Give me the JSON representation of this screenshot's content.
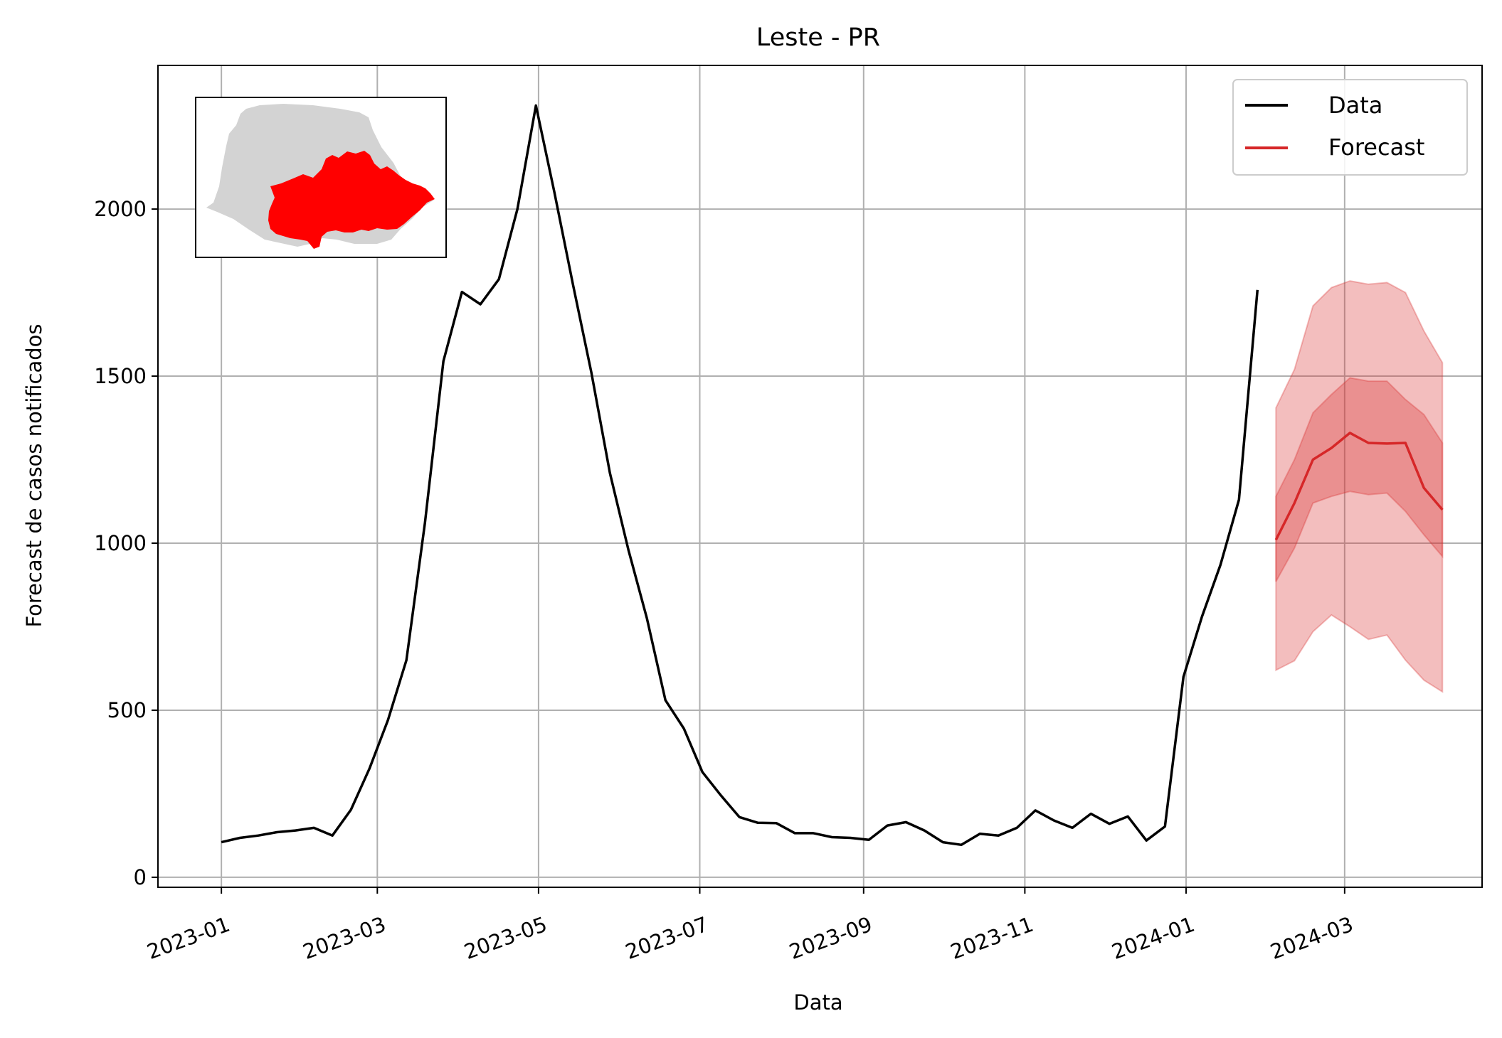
{
  "chart_data": {
    "type": "line",
    "title": "Leste - PR",
    "xlabel": "Data",
    "ylabel": "Forecast de casos notificados",
    "x_tick_labels": [
      "2023-01",
      "2023-03",
      "2023-05",
      "2023-07",
      "2023-09",
      "2023-11",
      "2024-01",
      "2024-03"
    ],
    "y_tick_labels": [
      "0",
      "500",
      "1000",
      "1500",
      "2000"
    ],
    "y_ticks": [
      0,
      500,
      1000,
      1500,
      2000
    ],
    "xlim": [
      "2022-12-08",
      "2024-04-22"
    ],
    "ylim": [
      -30,
      2430
    ],
    "grid": true,
    "legend": {
      "position": "top-right",
      "entries": [
        {
          "label": "Data",
          "color": "#000000"
        },
        {
          "label": "Forecast",
          "color": "#d62728"
        }
      ]
    },
    "series": [
      {
        "name": "Data",
        "color": "#000000",
        "x": [
          "2023-01-01",
          "2023-01-08",
          "2023-01-15",
          "2023-01-22",
          "2023-01-29",
          "2023-02-05",
          "2023-02-12",
          "2023-02-19",
          "2023-02-26",
          "2023-03-05",
          "2023-03-12",
          "2023-03-19",
          "2023-03-26",
          "2023-04-02",
          "2023-04-09",
          "2023-04-16",
          "2023-04-23",
          "2023-04-30",
          "2023-05-07",
          "2023-05-14",
          "2023-05-21",
          "2023-05-28",
          "2023-06-04",
          "2023-06-11",
          "2023-06-18",
          "2023-06-25",
          "2023-07-02",
          "2023-07-09",
          "2023-07-16",
          "2023-07-23",
          "2023-07-30",
          "2023-08-06",
          "2023-08-13",
          "2023-08-20",
          "2023-08-27",
          "2023-09-03",
          "2023-09-10",
          "2023-09-17",
          "2023-09-24",
          "2023-10-01",
          "2023-10-08",
          "2023-10-15",
          "2023-10-22",
          "2023-10-29",
          "2023-11-05",
          "2023-11-12",
          "2023-11-19",
          "2023-11-26",
          "2023-12-03",
          "2023-12-10",
          "2023-12-17",
          "2023-12-24",
          "2023-12-31",
          "2024-01-07",
          "2024-01-14",
          "2024-01-21",
          "2024-01-28"
        ],
        "y": [
          105,
          118,
          125,
          135,
          140,
          148,
          125,
          202,
          325,
          470,
          650,
          1060,
          1545,
          1752,
          1715,
          1790,
          2000,
          2310,
          2050,
          1775,
          1510,
          1210,
          980,
          775,
          530,
          445,
          315,
          245,
          180,
          163,
          162,
          132,
          132,
          120,
          118,
          112,
          155,
          165,
          140,
          105,
          97,
          130,
          125,
          148,
          200,
          170,
          148,
          190,
          160,
          182,
          110,
          152,
          600,
          780,
          935,
          1130,
          1758
        ]
      },
      {
        "name": "Forecast",
        "color": "#d62728",
        "x": [
          "2024-02-04",
          "2024-02-11",
          "2024-02-18",
          "2024-02-25",
          "2024-03-03",
          "2024-03-10",
          "2024-03-17",
          "2024-03-24",
          "2024-03-31",
          "2024-04-07"
        ],
        "y": [
          1010,
          1120,
          1250,
          1285,
          1330,
          1300,
          1298,
          1300,
          1165,
          1100
        ],
        "band_50_lower": [
          885,
          985,
          1120,
          1140,
          1155,
          1145,
          1150,
          1095,
          1025,
          960
        ],
        "band_50_upper": [
          1140,
          1250,
          1390,
          1445,
          1495,
          1485,
          1485,
          1430,
          1385,
          1300
        ],
        "band_90_lower": [
          620,
          648,
          735,
          785,
          750,
          712,
          725,
          650,
          590,
          555
        ],
        "band_90_upper": [
          1405,
          1520,
          1710,
          1765,
          1785,
          1775,
          1780,
          1750,
          1635,
          1540
        ]
      }
    ]
  },
  "inset": {
    "caption": "map-inset-parana-leste",
    "base_color": "#d3d3d3",
    "highlight_color": "#ff0000"
  }
}
